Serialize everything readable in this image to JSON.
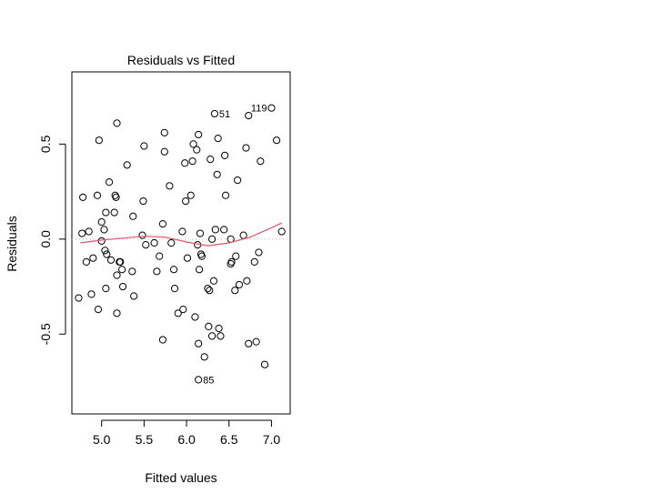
{
  "chart_data": {
    "type": "scatter",
    "title": "Residuals vs Fitted",
    "xlabel": "Fitted values",
    "ylabel": "Residuals",
    "xlim": [
      4.65,
      7.22
    ],
    "ylim": [
      -0.92,
      0.88
    ],
    "x_ticks": [
      5.0,
      5.5,
      6.0,
      6.5,
      7.0
    ],
    "x_tick_labels": [
      "5.0",
      "5.5",
      "6.0",
      "6.5",
      "7.0"
    ],
    "y_ticks": [
      -0.5,
      0.0,
      0.5
    ],
    "y_tick_labels": [
      "-0.5",
      "0.0",
      "0.5"
    ],
    "zero_line": 0,
    "colors": {
      "points": "#000000",
      "smooth": "#df536b",
      "zero_line": "#bebebe"
    },
    "point_labels": [
      {
        "label": "119",
        "x": 7.0,
        "y": 0.69
      },
      {
        "label": "51",
        "x": 6.33,
        "y": 0.66
      },
      {
        "label": "85",
        "x": 6.14,
        "y": -0.74
      }
    ],
    "points": [
      {
        "x": 4.73,
        "y": -0.31
      },
      {
        "x": 4.77,
        "y": 0.03
      },
      {
        "x": 4.78,
        "y": 0.22
      },
      {
        "x": 4.82,
        "y": -0.12
      },
      {
        "x": 4.85,
        "y": 0.04
      },
      {
        "x": 4.88,
        "y": -0.29
      },
      {
        "x": 4.9,
        "y": -0.1
      },
      {
        "x": 4.95,
        "y": 0.23
      },
      {
        "x": 4.96,
        "y": -0.37
      },
      {
        "x": 4.97,
        "y": 0.52
      },
      {
        "x": 5.0,
        "y": -0.01
      },
      {
        "x": 5.0,
        "y": 0.09
      },
      {
        "x": 5.03,
        "y": 0.05
      },
      {
        "x": 5.04,
        "y": -0.06
      },
      {
        "x": 5.05,
        "y": 0.14
      },
      {
        "x": 5.05,
        "y": -0.26
      },
      {
        "x": 5.06,
        "y": -0.08
      },
      {
        "x": 5.09,
        "y": 0.3
      },
      {
        "x": 5.11,
        "y": -0.11
      },
      {
        "x": 5.15,
        "y": 0.14
      },
      {
        "x": 5.16,
        "y": 0.23
      },
      {
        "x": 5.17,
        "y": 0.22
      },
      {
        "x": 5.18,
        "y": 0.61
      },
      {
        "x": 5.18,
        "y": -0.19
      },
      {
        "x": 5.18,
        "y": -0.39
      },
      {
        "x": 5.21,
        "y": -0.12
      },
      {
        "x": 5.22,
        "y": -0.12
      },
      {
        "x": 5.24,
        "y": -0.16
      },
      {
        "x": 5.25,
        "y": -0.25
      },
      {
        "x": 5.3,
        "y": 0.39
      },
      {
        "x": 5.36,
        "y": -0.17
      },
      {
        "x": 5.37,
        "y": 0.12
      },
      {
        "x": 5.38,
        "y": -0.3
      },
      {
        "x": 5.48,
        "y": 0.02
      },
      {
        "x": 5.49,
        "y": 0.2
      },
      {
        "x": 5.5,
        "y": 0.49
      },
      {
        "x": 5.52,
        "y": -0.03
      },
      {
        "x": 5.62,
        "y": -0.02
      },
      {
        "x": 5.65,
        "y": -0.17
      },
      {
        "x": 5.68,
        "y": -0.09
      },
      {
        "x": 5.72,
        "y": 0.08
      },
      {
        "x": 5.72,
        "y": -0.53
      },
      {
        "x": 5.74,
        "y": 0.56
      },
      {
        "x": 5.74,
        "y": 0.46
      },
      {
        "x": 5.8,
        "y": 0.28
      },
      {
        "x": 5.82,
        "y": -0.02
      },
      {
        "x": 5.85,
        "y": -0.16
      },
      {
        "x": 5.86,
        "y": -0.26
      },
      {
        "x": 5.9,
        "y": -0.39
      },
      {
        "x": 5.95,
        "y": 0.04
      },
      {
        "x": 5.96,
        "y": -0.37
      },
      {
        "x": 5.98,
        "y": 0.4
      },
      {
        "x": 5.99,
        "y": 0.2
      },
      {
        "x": 6.01,
        "y": -0.1
      },
      {
        "x": 6.05,
        "y": 0.23
      },
      {
        "x": 6.07,
        "y": 0.41
      },
      {
        "x": 6.08,
        "y": 0.5
      },
      {
        "x": 6.1,
        "y": -0.41
      },
      {
        "x": 6.12,
        "y": 0.47
      },
      {
        "x": 6.13,
        "y": -0.03
      },
      {
        "x": 6.14,
        "y": 0.55
      },
      {
        "x": 6.14,
        "y": -0.55
      },
      {
        "x": 6.15,
        "y": -0.16
      },
      {
        "x": 6.16,
        "y": 0.03
      },
      {
        "x": 6.17,
        "y": -0.08
      },
      {
        "x": 6.18,
        "y": -0.09
      },
      {
        "x": 6.21,
        "y": -0.62
      },
      {
        "x": 6.25,
        "y": -0.26
      },
      {
        "x": 6.26,
        "y": -0.46
      },
      {
        "x": 6.27,
        "y": -0.27
      },
      {
        "x": 6.28,
        "y": 0.42
      },
      {
        "x": 6.3,
        "y": -0.51
      },
      {
        "x": 6.3,
        "y": 0.0
      },
      {
        "x": 6.32,
        "y": -0.22
      },
      {
        "x": 6.34,
        "y": 0.05
      },
      {
        "x": 6.36,
        "y": 0.34
      },
      {
        "x": 6.37,
        "y": 0.53
      },
      {
        "x": 6.38,
        "y": -0.47
      },
      {
        "x": 6.4,
        "y": -0.51
      },
      {
        "x": 6.44,
        "y": 0.05
      },
      {
        "x": 6.45,
        "y": 0.44
      },
      {
        "x": 6.46,
        "y": 0.23
      },
      {
        "x": 6.52,
        "y": 0.0
      },
      {
        "x": 6.52,
        "y": -0.13
      },
      {
        "x": 6.53,
        "y": -0.12
      },
      {
        "x": 6.57,
        "y": -0.27
      },
      {
        "x": 6.58,
        "y": -0.09
      },
      {
        "x": 6.6,
        "y": 0.31
      },
      {
        "x": 6.62,
        "y": -0.24
      },
      {
        "x": 6.67,
        "y": 0.02
      },
      {
        "x": 6.7,
        "y": 0.48
      },
      {
        "x": 6.71,
        "y": -0.22
      },
      {
        "x": 6.73,
        "y": -0.55
      },
      {
        "x": 6.8,
        "y": -0.12
      },
      {
        "x": 6.82,
        "y": -0.54
      },
      {
        "x": 6.85,
        "y": -0.07
      },
      {
        "x": 6.87,
        "y": 0.41
      },
      {
        "x": 6.92,
        "y": -0.66
      },
      {
        "x": 7.06,
        "y": 0.52
      },
      {
        "x": 7.12,
        "y": 0.04
      },
      {
        "x": 7.0,
        "y": 0.69
      },
      {
        "x": 6.33,
        "y": 0.66
      },
      {
        "x": 6.14,
        "y": -0.74
      },
      {
        "x": 6.73,
        "y": 0.65
      }
    ],
    "smooth_line": [
      {
        "x": 4.75,
        "y": -0.02
      },
      {
        "x": 5.0,
        "y": -0.005
      },
      {
        "x": 5.25,
        "y": 0.005
      },
      {
        "x": 5.5,
        "y": 0.015
      },
      {
        "x": 5.75,
        "y": 0.01
      },
      {
        "x": 6.0,
        "y": -0.015
      },
      {
        "x": 6.25,
        "y": -0.035
      },
      {
        "x": 6.5,
        "y": -0.02
      },
      {
        "x": 6.75,
        "y": 0.01
      },
      {
        "x": 7.0,
        "y": 0.06
      },
      {
        "x": 7.12,
        "y": 0.085
      }
    ],
    "grid": false
  }
}
